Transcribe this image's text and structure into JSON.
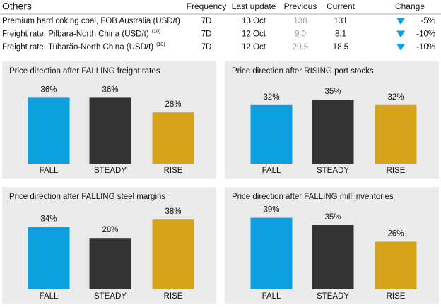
{
  "table": {
    "title": "Others",
    "columns": [
      "Frequency",
      "Last update",
      "Previous",
      "Current",
      "Change"
    ],
    "rows": [
      {
        "name": "Premium hard coking coal, FOB Australia (USD/t)",
        "note": null,
        "frequency": "7D",
        "last_update": "13 Oct",
        "previous": "138",
        "current": "131",
        "change": "-5%"
      },
      {
        "name": "Freight rate, Pilbara-North China (USD/t)",
        "note": "(10)",
        "frequency": "7D",
        "last_update": "12 Oct",
        "previous": "9.0",
        "current": "8.1",
        "change": "-10%"
      },
      {
        "name": "Freight rate, Tubarão-North China (USD/t)",
        "note": "(10)",
        "frequency": "7D",
        "last_update": "12 Oct",
        "previous": "20.5",
        "current": "18.5",
        "change": "-10%"
      }
    ]
  },
  "chart_data": [
    {
      "type": "bar",
      "title": "Price direction after FALLING freight rates",
      "categories": [
        "FALL",
        "STEADY",
        "RISE"
      ],
      "values": [
        36,
        36,
        28
      ],
      "value_labels": [
        "36%",
        "36%",
        "28%"
      ],
      "colors": [
        "#0d9fe0",
        "#333333",
        "#d6a31a"
      ]
    },
    {
      "type": "bar",
      "title": "Price direction after RISING port stocks",
      "categories": [
        "FALL",
        "STEADY",
        "RISE"
      ],
      "values": [
        32,
        35,
        32
      ],
      "value_labels": [
        "32%",
        "35%",
        "32%"
      ],
      "colors": [
        "#0d9fe0",
        "#333333",
        "#d6a31a"
      ]
    },
    {
      "type": "bar",
      "title": "Price direction after FALLING steel margins",
      "categories": [
        "FALL",
        "STEADY",
        "RISE"
      ],
      "values": [
        34,
        28,
        38
      ],
      "value_labels": [
        "34%",
        "28%",
        "38%"
      ],
      "colors": [
        "#0d9fe0",
        "#333333",
        "#d6a31a"
      ]
    },
    {
      "type": "bar",
      "title": "Price direction after FALLING mill inventories",
      "categories": [
        "FALL",
        "STEADY",
        "RISE"
      ],
      "values": [
        39,
        35,
        26
      ],
      "value_labels": [
        "39%",
        "35%",
        "26%"
      ],
      "colors": [
        "#0d9fe0",
        "#333333",
        "#d6a31a"
      ]
    }
  ]
}
